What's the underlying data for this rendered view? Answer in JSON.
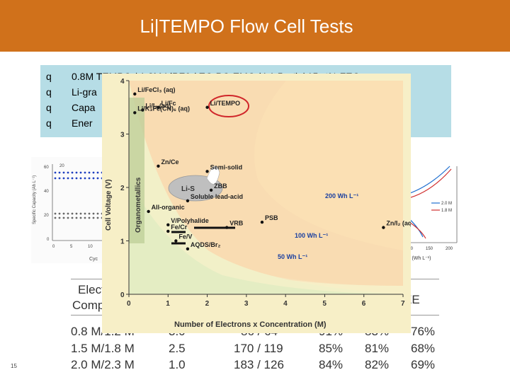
{
  "slide": {
    "title": "Li|TEMPO Flow Cell Tests",
    "page_number": "15",
    "colors": {
      "header": "#d0711b",
      "bullet_box": "#b6dde6"
    }
  },
  "bullets": [
    {
      "marker": "q",
      "text": "0.8M TEMPO / 1.2M LiPF6 / EC-PC-EMC (4:1:5 wt) / 15wt% FEC"
    },
    {
      "marker": "q",
      "text": "Li-gra"
    },
    {
      "marker": "q",
      "text": "Capa"
    },
    {
      "marker": "q",
      "text": "Ener"
    }
  ],
  "table": {
    "header_row_1": [
      "Elect",
      "EE"
    ],
    "header_row_2": [
      "Comp"
    ],
    "rows": [
      [
        "0.8 M/1.2 M",
        "3.0",
        "86 / 64",
        "91%",
        "83%",
        "76%"
      ],
      [
        "1.5 M/1.8 M",
        "2.5",
        "170 / 119",
        "85%",
        "81%",
        "68%"
      ],
      [
        "2.0 M/2.3 M",
        "1.0",
        "183 / 126",
        "84%",
        "82%",
        "69%"
      ]
    ]
  },
  "left_chart": {
    "ylabel": "Specific Capacity (Ah L⁻¹)",
    "y_ticks": [
      "60",
      "40",
      "20",
      "0"
    ],
    "x_ticks": [
      "0",
      "5",
      "10"
    ],
    "xlabel": "Cyc",
    "legend": "20"
  },
  "right_chart": {
    "legend": [
      "2.0 M",
      "1.8 M"
    ],
    "x_ticks": [
      "100",
      "150",
      "200"
    ],
    "xlabel": "sity (Wh L⁻¹)"
  },
  "main_chart": {
    "type": "scatter",
    "title": "",
    "xlabel": "Number of Electrons x Concentration (M)",
    "ylabel": "Cell Voltage (V)",
    "xlim": [
      0,
      7
    ],
    "ylim": [
      0,
      4
    ],
    "x_ticks": [
      "0",
      "1",
      "2",
      "3",
      "4",
      "5",
      "6",
      "7"
    ],
    "y_ticks": [
      "0",
      "1",
      "2",
      "3",
      "4"
    ],
    "band_labels": [
      "200 Wh L⁻¹",
      "100 Wh L⁻¹",
      "50 Wh L⁻¹"
    ],
    "region_labels": [
      "Organometallics",
      "Li-S",
      "Semi-solid"
    ],
    "points": [
      {
        "label": "Li/FeCl₃ (aq)",
        "x": 0.15,
        "y": 3.75
      },
      {
        "label": "Li/I₂ (aq)",
        "x": 0.35,
        "y": 3.45
      },
      {
        "label": "Li/Fc",
        "x": 0.75,
        "y": 3.5
      },
      {
        "label": "Li/TEMPO",
        "x": 2.0,
        "y": 3.5
      },
      {
        "label": "Li/K₃Fe(CN)₆ (aq)",
        "x": 0.15,
        "y": 3.4
      },
      {
        "label": "Zn/Ce",
        "x": 0.75,
        "y": 2.4
      },
      {
        "label": "Semi-solid",
        "x": 2.0,
        "y": 2.3
      },
      {
        "label": "ZBB",
        "x": 2.1,
        "y": 1.95
      },
      {
        "label": "Soluble lead-acid",
        "x": 1.5,
        "y": 1.75
      },
      {
        "label": "All-organic",
        "x": 0.5,
        "y": 1.55
      },
      {
        "label": "V/Polyhalide",
        "x": 1.0,
        "y": 1.3
      },
      {
        "label": "PSB",
        "x": 3.4,
        "y": 1.35
      },
      {
        "label": "Fe/Cr",
        "x": 1.0,
        "y": 1.18
      },
      {
        "label": "VRB",
        "x": 2.5,
        "y": 1.25
      },
      {
        "label": "Fe/V",
        "x": 1.2,
        "y": 1.0
      },
      {
        "label": "AQDS/Br₂",
        "x": 1.5,
        "y": 0.85
      },
      {
        "label": "Zn/I₂ (aq)",
        "x": 6.5,
        "y": 1.25
      }
    ]
  }
}
